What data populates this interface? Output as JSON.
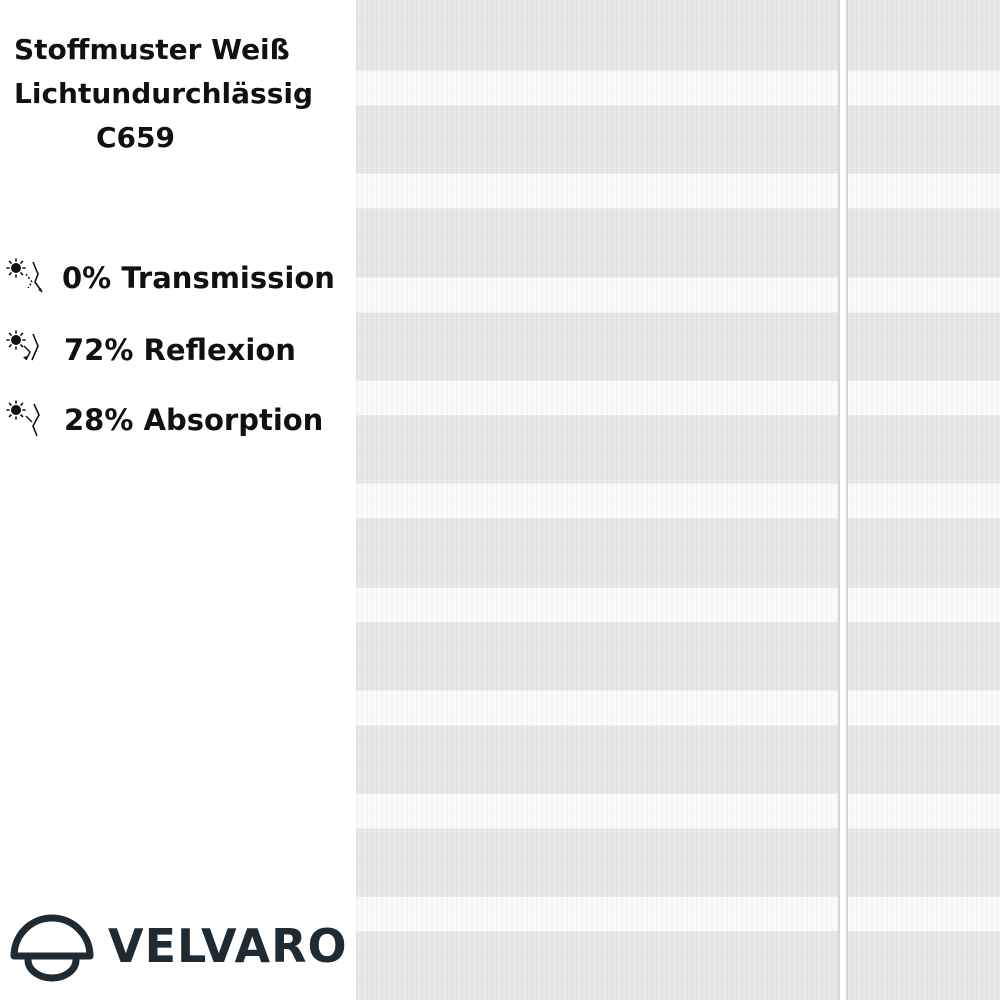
{
  "product": {
    "title_line1": "Stoffmuster Weiß",
    "title_line2": "Lichtundurchlässig",
    "title_line3": "C659"
  },
  "properties": [
    {
      "label": "0% Transmission",
      "icon": "sun-transmission-icon"
    },
    {
      "label": "72% Reflexion",
      "icon": "sun-reflection-icon"
    },
    {
      "label": "28% Absorption",
      "icon": "sun-absorption-icon"
    }
  ],
  "brand": {
    "name": "VELVARO",
    "logo_icon": "dome-lamp-icon",
    "color": "#1f2a33"
  },
  "swatch": {
    "color_fabric": "#e6e6e6",
    "color_stripe": "#fafafa",
    "stripe_count": 9
  }
}
